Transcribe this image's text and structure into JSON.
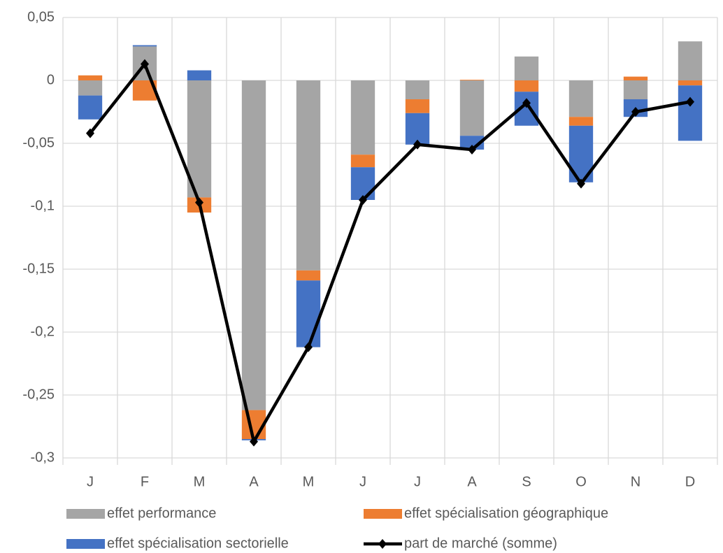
{
  "chart_data": {
    "type": "bar",
    "categories": [
      "J",
      "F",
      "M",
      "A",
      "M",
      "J",
      "J",
      "A",
      "S",
      "O",
      "N",
      "D"
    ],
    "series": [
      {
        "name": "effet performance",
        "type": "bar",
        "color": "#a5a5a5",
        "values": [
          -0.012,
          0.027,
          -0.093,
          -0.262,
          -0.151,
          -0.059,
          -0.015,
          -0.044,
          0.019,
          -0.029,
          -0.015,
          0.031
        ]
      },
      {
        "name": "effet spécialisation géographique",
        "type": "bar",
        "color": "#ed7d31",
        "values": [
          0.004,
          -0.016,
          -0.012,
          -0.023,
          -0.008,
          -0.01,
          -0.011,
          0.0005,
          -0.009,
          -0.007,
          0.003,
          -0.004
        ]
      },
      {
        "name": "effet spécialisation sectorielle",
        "type": "bar",
        "color": "#4472c4",
        "values": [
          -0.019,
          0.001,
          0.008,
          -0.001,
          -0.053,
          -0.026,
          -0.025,
          -0.011,
          -0.027,
          -0.045,
          -0.014,
          -0.044
        ]
      },
      {
        "name": "part de marché (somme)",
        "type": "line",
        "color": "#000000",
        "values": [
          -0.042,
          0.013,
          -0.097,
          -0.287,
          -0.212,
          -0.095,
          -0.051,
          -0.055,
          -0.018,
          -0.082,
          -0.025,
          -0.017
        ]
      }
    ],
    "ylim": [
      -0.3,
      0.05
    ],
    "yticks": [
      {
        "value": -0.3,
        "label": "-0,3"
      },
      {
        "value": -0.25,
        "label": "-0,25"
      },
      {
        "value": -0.2,
        "label": "-0,2"
      },
      {
        "value": -0.15,
        "label": "-0,15"
      },
      {
        "value": -0.1,
        "label": "-0,1"
      },
      {
        "value": -0.05,
        "label": "-0,05"
      },
      0,
      {
        "value": 0.05,
        "label": "0,05"
      }
    ],
    "grid": true,
    "legend": "bottom"
  }
}
